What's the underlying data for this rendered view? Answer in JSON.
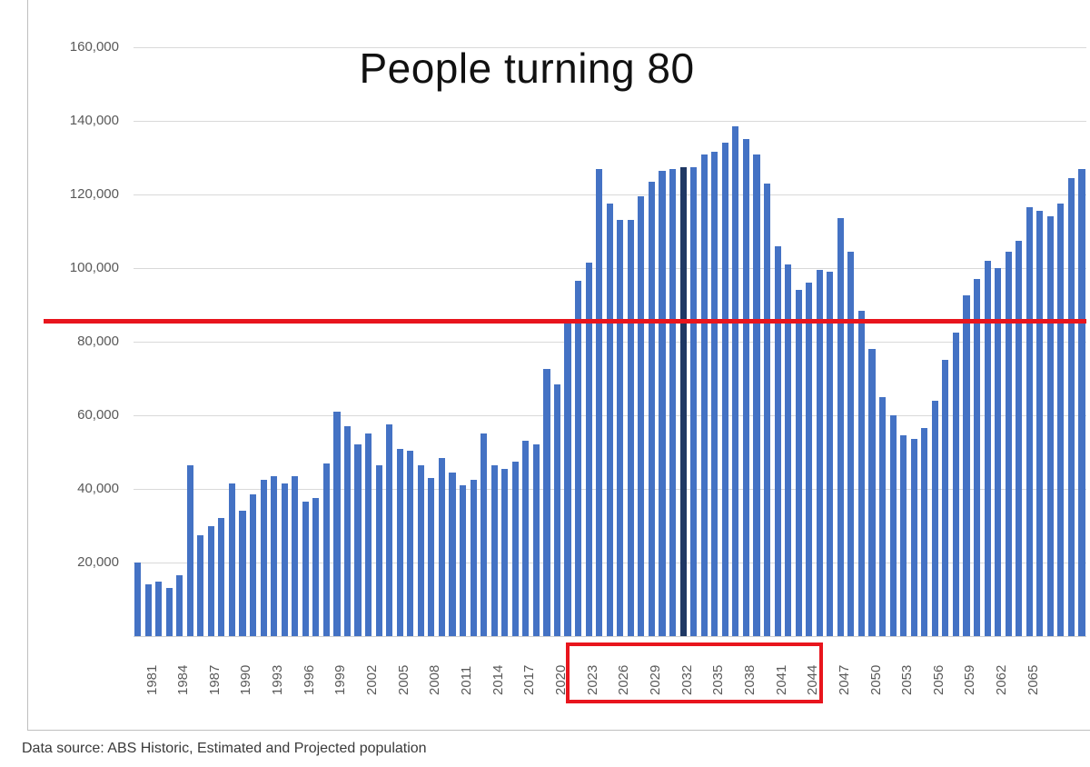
{
  "chart": {
    "title": "People turning 80"
  },
  "footer": {
    "text": "Data source: ABS Historic, Estimated and Projected population"
  },
  "chart_data": {
    "type": "bar",
    "title": "People turning 80",
    "xlabel": "",
    "ylabel": "",
    "ylim": [
      0,
      160000
    ],
    "grid_interval": 20000,
    "grid": true,
    "legend_position": "none",
    "bar_color": "#4472c4",
    "y_tick_labels": [
      "20,000",
      "40,000",
      "60,000",
      "80,000",
      "100,000",
      "120,000",
      "140,000",
      "160,000"
    ],
    "y_tick_values": [
      20000,
      40000,
      60000,
      80000,
      100000,
      120000,
      140000,
      160000
    ],
    "x_tick_labels": [
      "1981",
      "1984",
      "1987",
      "1990",
      "1993",
      "1996",
      "1999",
      "2002",
      "2005",
      "2008",
      "2011",
      "2014",
      "2017",
      "2020",
      "2023",
      "2026",
      "2029",
      "2032",
      "2035",
      "2038",
      "2041",
      "2044",
      "2047",
      "2050",
      "2053",
      "2056",
      "2059",
      "2062",
      "2065"
    ],
    "categories": [
      1981,
      1982,
      1983,
      1984,
      1985,
      1986,
      1987,
      1988,
      1989,
      1990,
      1991,
      1992,
      1993,
      1994,
      1995,
      1996,
      1997,
      1998,
      1999,
      2000,
      2001,
      2002,
      2003,
      2004,
      2005,
      2006,
      2007,
      2008,
      2009,
      2010,
      2011,
      2012,
      2013,
      2014,
      2015,
      2016,
      2017,
      2018,
      2019,
      2020,
      2021,
      2022,
      2023,
      2024,
      2025,
      2026,
      2027,
      2028,
      2029,
      2030,
      2031,
      2032,
      2033,
      2034,
      2035,
      2036,
      2037,
      2038,
      2039,
      2040,
      2041,
      2042,
      2043,
      2044,
      2045,
      2046,
      2047,
      2048,
      2049,
      2050,
      2051,
      2052,
      2053,
      2054,
      2055,
      2056,
      2057,
      2058,
      2059,
      2060,
      2061,
      2062,
      2063,
      2064,
      2065,
      2066,
      2067,
      2068,
      2069,
      2070,
      2071
    ],
    "values": [
      20000,
      14000,
      14800,
      13000,
      16500,
      46500,
      27500,
      30000,
      32000,
      41500,
      34000,
      38500,
      42500,
      43500,
      41500,
      43500,
      36500,
      37500,
      47000,
      61000,
      57000,
      52000,
      55000,
      46500,
      57500,
      51000,
      50500,
      46500,
      43000,
      48500,
      44500,
      41000,
      42500,
      55000,
      46500,
      45500,
      47500,
      53000,
      52000,
      72500,
      68500,
      85500,
      96500,
      101500,
      127000,
      117500,
      113000,
      113000,
      119500,
      123500,
      126500,
      127000,
      127500,
      127500,
      131000,
      131500,
      134000,
      138500,
      135000,
      131000,
      123000,
      106000,
      101000,
      94000,
      96000,
      99500,
      99000,
      113500,
      104500,
      88500,
      78000,
      65000,
      60000,
      54500,
      53500,
      56500,
      64000,
      75000,
      82500,
      92500,
      97000,
      102000,
      100000,
      104500,
      107500,
      116500,
      115500,
      114000,
      117500,
      124500,
      127000
    ],
    "annotations": {
      "red_line": {
        "value": 85500,
        "color": "#e8151d",
        "thickness": 5
      },
      "highlight_box": {
        "from_year": 2023,
        "to_year": 2044,
        "color": "#e8151d",
        "thickness": 4
      },
      "highlighted_bar": {
        "year": 2033,
        "color": "#1f3864"
      }
    }
  }
}
